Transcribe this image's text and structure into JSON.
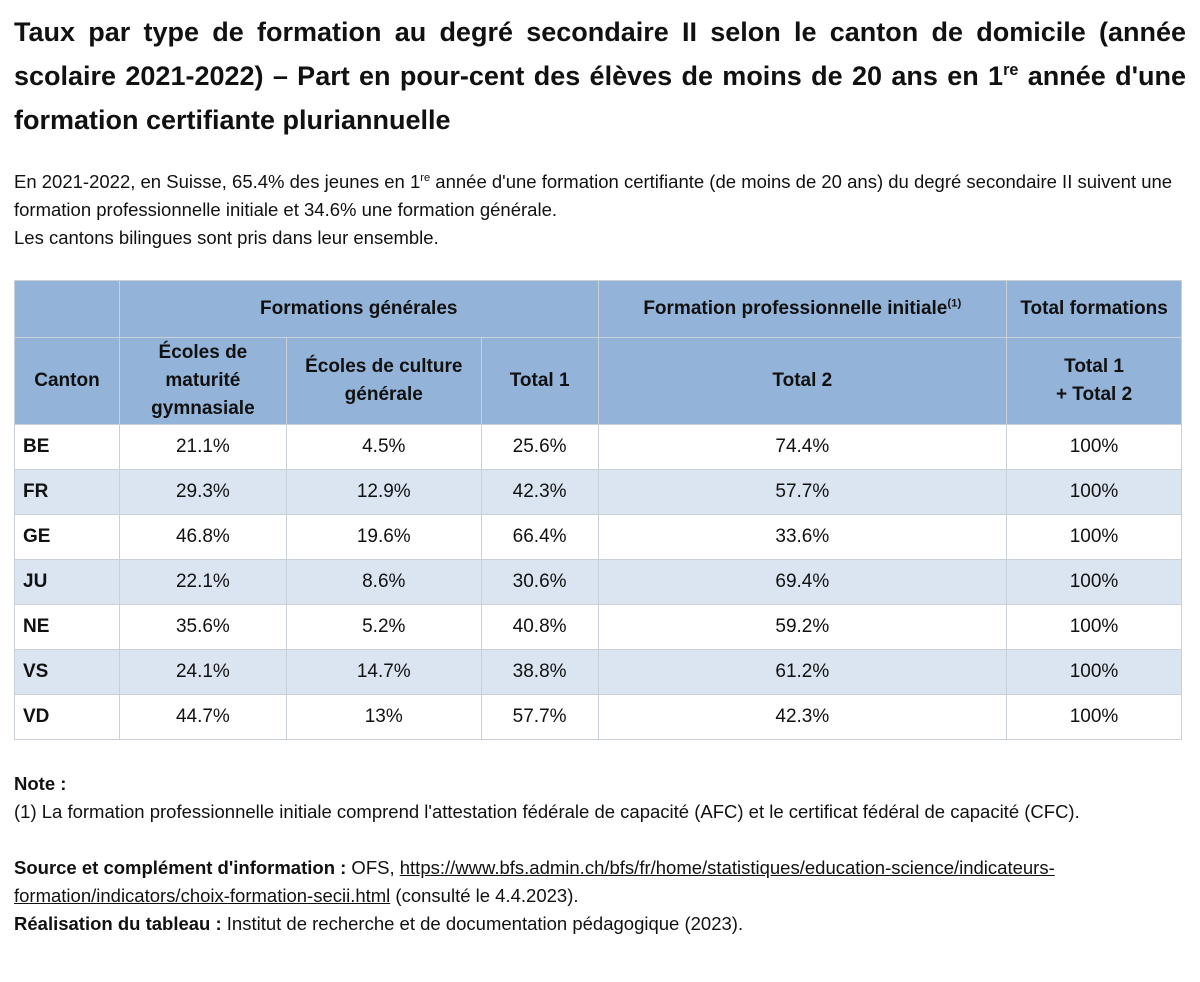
{
  "title": {
    "line_a": "Taux par type de formation au degré secondaire II selon le canton de domicile (année scolaire 2021-2022) – Part en pour-cent des élèves de moins de 20 ans en 1",
    "sup": "re",
    "line_b": " année d'une formation certifiante pluriannuelle"
  },
  "intro": {
    "p1_a": "En 2021-2022, en Suisse, 65.4% des jeunes en 1",
    "p1_sup": "re",
    "p1_b": " année d'une formation certifiante (de moins de 20 ans) du degré secondaire II suivent une formation professionnelle initiale et 34.6% une formation générale.",
    "p2": "Les cantons bilingues sont pris dans leur ensemble."
  },
  "table": {
    "group_headers": {
      "generales": "Formations générales",
      "professionnelle": "Formation professionnelle initiale",
      "professionnelle_sup": "(1)",
      "total": "Total formations"
    },
    "col_headers": {
      "canton": "Canton",
      "maturite": "Écoles de maturité gymnasiale",
      "culture": "Écoles de culture générale",
      "total1": "Total 1",
      "total2": "Total 2",
      "total12_a": "Total 1",
      "total12_b": "+ Total 2"
    },
    "rows": [
      {
        "canton": "BE",
        "maturite": "21.1%",
        "culture": "4.5%",
        "total1": "25.6%",
        "total2": "74.4%",
        "total": "100%"
      },
      {
        "canton": "FR",
        "maturite": "29.3%",
        "culture": "12.9%",
        "total1": "42.3%",
        "total2": "57.7%",
        "total": "100%"
      },
      {
        "canton": "GE",
        "maturite": "46.8%",
        "culture": "19.6%",
        "total1": "66.4%",
        "total2": "33.6%",
        "total": "100%"
      },
      {
        "canton": "JU",
        "maturite": "22.1%",
        "culture": "8.6%",
        "total1": "30.6%",
        "total2": "69.4%",
        "total": "100%"
      },
      {
        "canton": "NE",
        "maturite": "35.6%",
        "culture": "5.2%",
        "total1": "40.8%",
        "total2": "59.2%",
        "total": "100%"
      },
      {
        "canton": "VS",
        "maturite": "24.1%",
        "culture": "14.7%",
        "total1": "38.8%",
        "total2": "61.2%",
        "total": "100%"
      },
      {
        "canton": "VD",
        "maturite": "44.7%",
        "culture": "13%",
        "total1": "57.7%",
        "total2": "42.3%",
        "total": "100%"
      }
    ]
  },
  "notes": {
    "note_label": "Note :",
    "note_1": "(1) La formation professionnelle initiale comprend l'attestation fédérale de capacité (AFC) et le certificat fédéral de capacité (CFC).",
    "source_label": "Source et complément d'information :",
    "source_org": " OFS, ",
    "source_url": "https://www.bfs.admin.ch/bfs/fr/home/statistiques/education-science/indicateurs-formation/indicators/choix-formation-secii.html",
    "source_consulted": " (consulté le 4.4.2023).",
    "realisation_label": "Réalisation du tableau :",
    "realisation_text": " Institut de recherche et de documentation pédagogique (2023)."
  }
}
